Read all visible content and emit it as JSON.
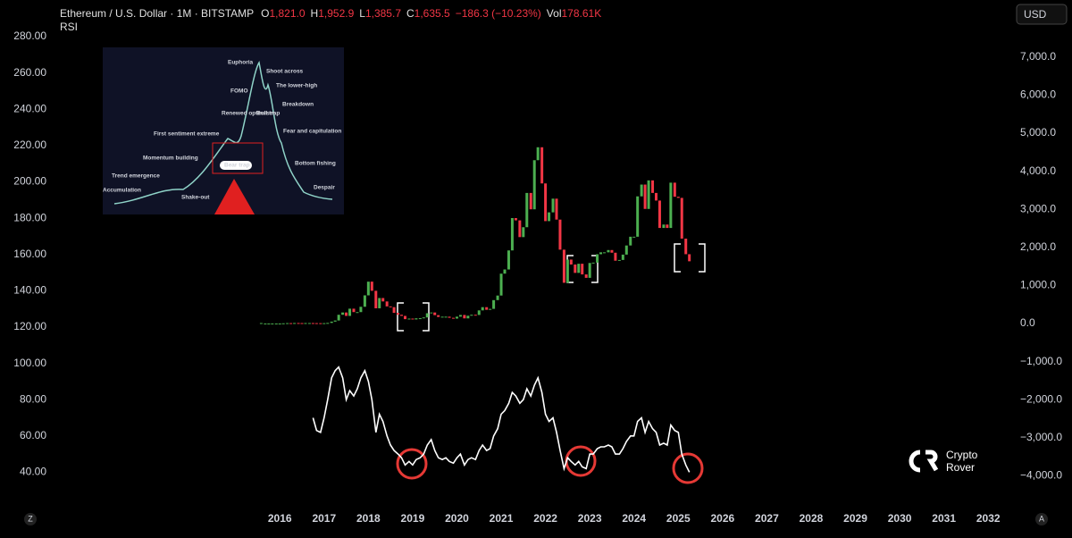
{
  "header": {
    "symbol": "Ethereum / U.S. Dollar · 1M · BITSTAMP",
    "o_key": "O",
    "o": "1,821.0",
    "h_key": "H",
    "h": "1,952.9",
    "l_key": "L",
    "l": "1,385.7",
    "c_key": "C",
    "c": "1,635.5",
    "change": "−186.3 (−10.23%)",
    "vol_key": "Vol",
    "vol": "178.61K",
    "indicator": "RSI",
    "currency": "USD"
  },
  "inset": {
    "labels": [
      "Euphoria",
      "Shoot across",
      "FOMO",
      "The lower-high",
      "Renewed optimism",
      "Bull trap",
      "Breakdown",
      "First sentiment extreme",
      "Fear and capitulation",
      "Momentum building",
      "Bear trap",
      "Trend emergence",
      "Bottom fishing",
      "Accumulation",
      "Shake-out",
      "Despair"
    ]
  },
  "logo": {
    "line1": "Crypto",
    "line2": "Rover"
  },
  "corner_left": "Z",
  "corner_right": "A",
  "chart_data": {
    "type": "candlestick",
    "xlim": [
      2009.68,
      2032.48
    ],
    "xticks": [
      2016,
      2017,
      2018,
      2019,
      2020,
      2021,
      2022,
      2023,
      2024,
      2025,
      2026,
      2027,
      2028,
      2029,
      2030,
      2031,
      2032
    ],
    "ylim": [
      22,
      300.2
    ],
    "yticks": [
      {
        "value": 40,
        "label": "40.00"
      },
      {
        "value": 60,
        "label": "60.00"
      },
      {
        "value": 80,
        "label": "80.00"
      },
      {
        "value": 100,
        "label": "100.00"
      },
      {
        "value": 120,
        "label": "120.00"
      },
      {
        "value": 140,
        "label": "140.00"
      },
      {
        "value": 160,
        "label": "160.00"
      },
      {
        "value": 180,
        "label": "180.00"
      },
      {
        "value": 200,
        "label": "200.00"
      },
      {
        "value": 220,
        "label": "220.00"
      },
      {
        "value": 240,
        "label": "240.00"
      },
      {
        "value": 260,
        "label": "260.00"
      },
      {
        "value": 280,
        "label": "280.00"
      }
    ],
    "y2lim": [
      -4765,
      8498
    ],
    "y2ticks": [
      {
        "value": -4000,
        "label": "−4,000.0"
      },
      {
        "value": -3000,
        "label": "−3,000.0"
      },
      {
        "value": -2000,
        "label": "−2,000.0"
      },
      {
        "value": -1000,
        "label": "−1,000.0"
      },
      {
        "value": 0,
        "label": "0.0"
      },
      {
        "value": 1000,
        "label": "1,000.0"
      },
      {
        "value": 2000,
        "label": "2,000.0"
      },
      {
        "value": 3000,
        "label": "3,000.0"
      },
      {
        "value": 4000,
        "label": "4,000.0"
      },
      {
        "value": 5000,
        "label": "5,000.0"
      },
      {
        "value": 6000,
        "label": "6,000.0"
      },
      {
        "value": 7000,
        "label": "7,000.0"
      }
    ],
    "series": [
      {
        "name": "ETHUSD",
        "axis": "y2",
        "up_color": "#4caf50",
        "down_color": "#f23645",
        "x": [
          2015.58,
          2015.67,
          2015.75,
          2015.83,
          2015.92,
          2016.0,
          2016.08,
          2016.17,
          2016.25,
          2016.33,
          2016.42,
          2016.5,
          2016.58,
          2016.67,
          2016.75,
          2016.83,
          2016.92,
          2017.0,
          2017.08,
          2017.17,
          2017.25,
          2017.33,
          2017.42,
          2017.5,
          2017.58,
          2017.67,
          2017.75,
          2017.83,
          2017.92,
          2018.0,
          2018.08,
          2018.17,
          2018.25,
          2018.33,
          2018.42,
          2018.5,
          2018.58,
          2018.67,
          2018.75,
          2018.83,
          2018.92,
          2019.0,
          2019.08,
          2019.17,
          2019.25,
          2019.33,
          2019.42,
          2019.5,
          2019.58,
          2019.67,
          2019.75,
          2019.83,
          2019.92,
          2020.0,
          2020.08,
          2020.17,
          2020.25,
          2020.33,
          2020.42,
          2020.5,
          2020.58,
          2020.67,
          2020.75,
          2020.83,
          2020.92,
          2021.0,
          2021.08,
          2021.17,
          2021.25,
          2021.33,
          2021.42,
          2021.5,
          2021.58,
          2021.67,
          2021.75,
          2021.83,
          2021.92,
          2022.0,
          2022.08,
          2022.17,
          2022.25,
          2022.33,
          2022.42,
          2022.5,
          2022.58,
          2022.67,
          2022.75,
          2022.83,
          2022.92,
          2023.0,
          2023.08,
          2023.17,
          2023.25,
          2023.33,
          2023.42,
          2023.5,
          2023.58,
          2023.67,
          2023.75,
          2023.83,
          2023.92,
          2024.0,
          2024.08,
          2024.17,
          2024.25,
          2024.33,
          2024.42,
          2024.5,
          2024.58,
          2024.67,
          2024.75,
          2024.83,
          2024.92,
          2025.0,
          2025.08,
          2025.17,
          2025.25
        ],
        "values": [
          1,
          1,
          1,
          1,
          1,
          1,
          6,
          11,
          8,
          14,
          12,
          11,
          13,
          13,
          11,
          10,
          8,
          10,
          16,
          50,
          80,
          230,
          290,
          200,
          390,
          300,
          300,
          440,
          740,
          1100,
          860,
          400,
          670,
          580,
          450,
          430,
          280,
          230,
          200,
          115,
          130,
          107,
          137,
          140,
          160,
          270,
          290,
          220,
          172,
          180,
          180,
          150,
          130,
          180,
          225,
          135,
          205,
          230,
          225,
          345,
          430,
          360,
          385,
          615,
          735,
          1310,
          1420,
          1920,
          2770,
          2710,
          2270,
          2530,
          3430,
          3000,
          4290,
          4630,
          3680,
          2690,
          2920,
          3280,
          2730,
          1940,
          1070,
          1680,
          1550,
          1330,
          1570,
          1290,
          1200,
          1590,
          1600,
          1820,
          1870,
          1870,
          1930,
          1860,
          1650,
          1670,
          1810,
          2050,
          2280,
          2280,
          3340,
          3650,
          3010,
          3760,
          3430,
          3230,
          2510,
          2600,
          2510,
          3700,
          3330,
          3300,
          2230,
          1821,
          1635
        ]
      },
      {
        "name": "RSI",
        "axis": "y",
        "color": "#ffffff",
        "x": [
          2016.75,
          2016.83,
          2016.92,
          2017.0,
          2017.08,
          2017.17,
          2017.25,
          2017.33,
          2017.42,
          2017.5,
          2017.58,
          2017.67,
          2017.75,
          2017.83,
          2017.92,
          2018.0,
          2018.08,
          2018.17,
          2018.25,
          2018.33,
          2018.42,
          2018.5,
          2018.58,
          2018.67,
          2018.75,
          2018.83,
          2018.92,
          2019.0,
          2019.08,
          2019.17,
          2019.25,
          2019.33,
          2019.42,
          2019.5,
          2019.58,
          2019.67,
          2019.75,
          2019.83,
          2019.92,
          2020.0,
          2020.08,
          2020.17,
          2020.25,
          2020.33,
          2020.42,
          2020.5,
          2020.58,
          2020.67,
          2020.75,
          2020.83,
          2020.92,
          2021.0,
          2021.08,
          2021.17,
          2021.25,
          2021.33,
          2021.42,
          2021.5,
          2021.58,
          2021.67,
          2021.75,
          2021.83,
          2021.92,
          2022.0,
          2022.08,
          2022.17,
          2022.25,
          2022.33,
          2022.42,
          2022.5,
          2022.58,
          2022.67,
          2022.75,
          2022.83,
          2022.92,
          2023.0,
          2023.08,
          2023.17,
          2023.25,
          2023.33,
          2023.42,
          2023.5,
          2023.58,
          2023.67,
          2023.75,
          2023.83,
          2023.92,
          2024.0,
          2024.08,
          2024.17,
          2024.25,
          2024.33,
          2024.42,
          2024.5,
          2024.58,
          2024.67,
          2024.75,
          2024.83,
          2024.92,
          2025.0,
          2025.08,
          2025.17,
          2025.25
        ],
        "values": [
          70,
          63,
          62,
          70,
          80,
          92,
          96,
          98,
          92,
          80,
          85,
          82,
          86,
          92,
          96,
          90,
          80,
          62,
          72,
          68,
          60,
          55,
          52,
          50,
          48,
          44,
          46,
          44,
          47,
          48,
          50,
          55,
          58,
          52,
          48,
          47,
          48,
          46,
          45,
          48,
          50,
          44,
          47,
          48,
          47,
          52,
          55,
          52,
          53,
          60,
          64,
          72,
          74,
          78,
          84,
          82,
          78,
          80,
          86,
          82,
          88,
          92,
          84,
          72,
          68,
          70,
          62,
          52,
          42,
          48,
          46,
          44,
          46,
          43,
          42,
          50,
          50,
          53,
          54,
          54,
          55,
          54,
          50,
          50,
          53,
          57,
          60,
          60,
          68,
          70,
          62,
          68,
          64,
          62,
          55,
          56,
          55,
          66,
          63,
          62,
          50,
          44,
          40
        ]
      }
    ]
  }
}
